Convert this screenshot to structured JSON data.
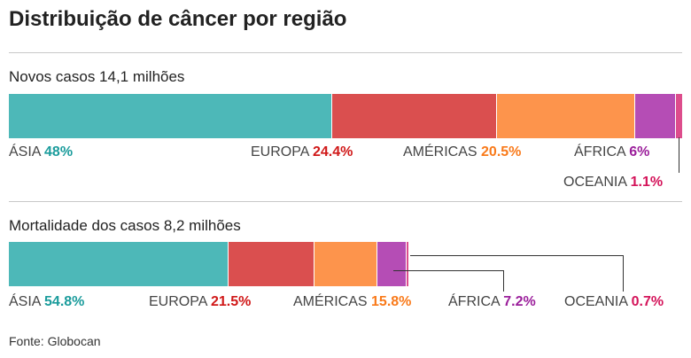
{
  "chart_data": [
    {
      "type": "bar",
      "orientation": "horizontal-stacked",
      "title": "Distribuição de câncer por região",
      "subtitle": "Novos casos 14,1 milhões",
      "categories": [
        "ÁSIA",
        "EUROPA",
        "AMÉRICAS",
        "ÁFRICA",
        "OCEANIA"
      ],
      "values": [
        48,
        24.4,
        20.5,
        6,
        1.1
      ],
      "value_labels": [
        "48%",
        "24.4%",
        "20.5%",
        "6%",
        "1.1%"
      ],
      "total": 14.1
    },
    {
      "type": "bar",
      "orientation": "horizontal-stacked",
      "subtitle": "Mortalidade dos casos 8,2 milhões",
      "categories": [
        "ÁSIA",
        "EUROPA",
        "AMÉRICAS",
        "ÁFRICA",
        "OCEANIA"
      ],
      "values": [
        54.8,
        21.5,
        15.8,
        7.2,
        0.7
      ],
      "value_labels": [
        "54.8%",
        "21.5%",
        "15.8%",
        "7.2%",
        "0.7%"
      ],
      "total": 8.2
    }
  ],
  "colors": {
    "segments": [
      "#4db8b8",
      "#da4f4f",
      "#fd944c",
      "#b54db5",
      "#dd4d8c"
    ],
    "text": [
      "#1b9c9c",
      "#d01818",
      "#f97a1a",
      "#9b1f9b",
      "#d4145a"
    ]
  },
  "source": "Fonte: Globocan"
}
